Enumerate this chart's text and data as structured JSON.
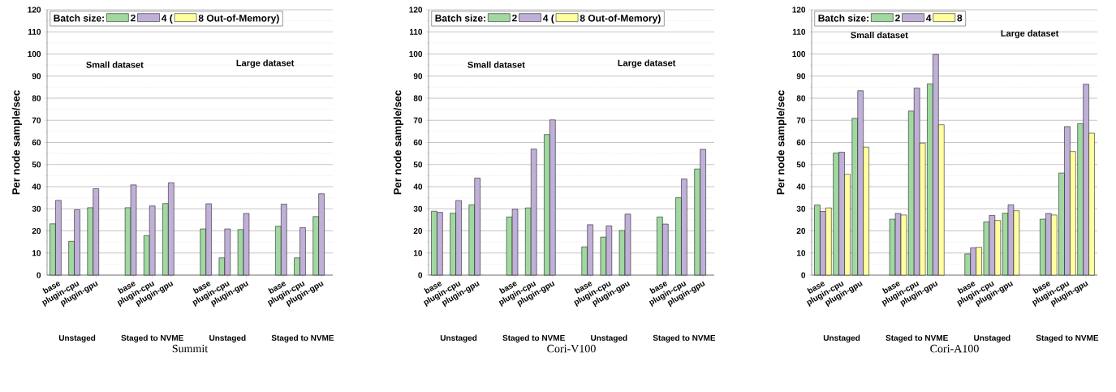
{
  "chart_data": [
    {
      "type": "bar",
      "title": "Summit",
      "ylabel": "Per node sample/sec",
      "legend_title": "Batch size:",
      "categories": [
        "base",
        "plugin-cpu",
        "plugin-gpu",
        null,
        "base",
        "plugin-cpu",
        "plugin-gpu",
        null,
        "base",
        "plugin-cpu",
        "plugin-gpu",
        null,
        "base",
        "plugin-cpu",
        "plugin-gpu"
      ],
      "series": [
        {
          "name": "2",
          "color": "#a0d8a0",
          "values": [
            23.2,
            15.3,
            30.5,
            null,
            30.5,
            17.9,
            32.4,
            null,
            20.9,
            7.8,
            20.6,
            null,
            22.1,
            7.8,
            26.5
          ]
        },
        {
          "name": "4 (",
          "color": "#c0b0d8",
          "values": [
            33.8,
            29.6,
            39.1,
            null,
            40.8,
            31.3,
            41.8,
            null,
            32.3,
            20.9,
            27.9,
            null,
            32.1,
            21.5,
            36.8
          ]
        },
        {
          "name": "8 Out-of-Memory)",
          "color": "#ffffa0",
          "values": [
            null,
            null,
            null,
            null,
            null,
            null,
            null,
            null,
            null,
            null,
            null,
            null,
            null,
            null,
            null
          ]
        }
      ],
      "ylim": [
        0,
        120
      ],
      "yticks": [
        0,
        10,
        20,
        30,
        40,
        50,
        60,
        70,
        80,
        90,
        100,
        110,
        120
      ],
      "grid": "y",
      "legend": "top left",
      "annotations": [
        "Unstaged",
        "Staged to NVME",
        "Unstaged",
        "Staged to NVME",
        "Small dataset",
        "Large dataset"
      ]
    },
    {
      "type": "bar",
      "title": "Cori-V100",
      "ylabel": "Per node sample/sec",
      "legend_title": "Batch size:",
      "categories": [
        "base",
        "plugin-cpu",
        "plugin-gpu",
        null,
        "base",
        "plugin-cpu",
        "plugin-gpu",
        null,
        "base",
        "plugin-cpu",
        "plugin-gpu",
        null,
        "base",
        "plugin-cpu",
        "plugin-gpu"
      ],
      "series": [
        {
          "name": "2",
          "color": "#a0d8a0",
          "values": [
            28.9,
            28.0,
            31.8,
            null,
            26.3,
            30.4,
            63.6,
            null,
            12.8,
            17.2,
            20.2,
            null,
            26.3,
            35.0,
            48.0
          ]
        },
        {
          "name": "4 (",
          "color": "#c0b0d8",
          "values": [
            28.4,
            33.7,
            43.9,
            null,
            29.8,
            57.0,
            70.2,
            null,
            22.8,
            22.3,
            27.6,
            null,
            23.1,
            43.5,
            56.9
          ]
        },
        {
          "name": "8 Out-of-Memory)",
          "color": "#ffffa0",
          "values": [
            null,
            null,
            null,
            null,
            null,
            null,
            null,
            null,
            null,
            null,
            null,
            null,
            null,
            null,
            null
          ]
        }
      ],
      "ylim": [
        0,
        120
      ],
      "yticks": [
        0,
        10,
        20,
        30,
        40,
        50,
        60,
        70,
        80,
        90,
        100,
        110,
        120
      ],
      "grid": "y",
      "legend": "top left",
      "annotations": [
        "Unstaged",
        "Staged to NVME",
        "Unstaged",
        "Staged to NVME",
        "Small dataset",
        "Large dataset"
      ]
    },
    {
      "type": "bar",
      "title": "Cori-A100",
      "ylabel": "Per node sample/sec",
      "legend_title": "Batch size:",
      "categories": [
        "base",
        "plugin-cpu",
        "plugin-gpu",
        null,
        "base",
        "plugin-cpu",
        "plugin-gpu",
        null,
        "base",
        "plugin-cpu",
        "plugin-gpu",
        null,
        "base",
        "plugin-cpu",
        "plugin-gpu"
      ],
      "series": [
        {
          "name": "2",
          "color": "#a0d8a0",
          "values": [
            31.7,
            55.2,
            70.9,
            null,
            25.3,
            74.2,
            86.5,
            null,
            9.6,
            24.1,
            28.0,
            null,
            25.3,
            46.2,
            68.5
          ]
        },
        {
          "name": "4",
          "color": "#c0b0d8",
          "values": [
            28.8,
            55.6,
            83.4,
            null,
            27.9,
            84.6,
            99.8,
            null,
            12.4,
            27.0,
            31.8,
            null,
            27.9,
            67.2,
            86.3
          ]
        },
        {
          "name": "8",
          "color": "#ffffa0",
          "values": [
            30.4,
            45.6,
            57.9,
            null,
            27.2,
            59.7,
            68.0,
            null,
            12.6,
            24.7,
            29.1,
            null,
            27.2,
            55.9,
            64.2
          ]
        }
      ],
      "ylim": [
        0,
        120
      ],
      "yticks": [
        0,
        10,
        20,
        30,
        40,
        50,
        60,
        70,
        80,
        90,
        100,
        110,
        120
      ],
      "grid": "y",
      "legend": "top left",
      "annotations": [
        "Unstaged",
        "Staged to NVME",
        "Unstaged",
        "Staged to NVME",
        "Small dataset",
        "Large dataset"
      ]
    }
  ]
}
